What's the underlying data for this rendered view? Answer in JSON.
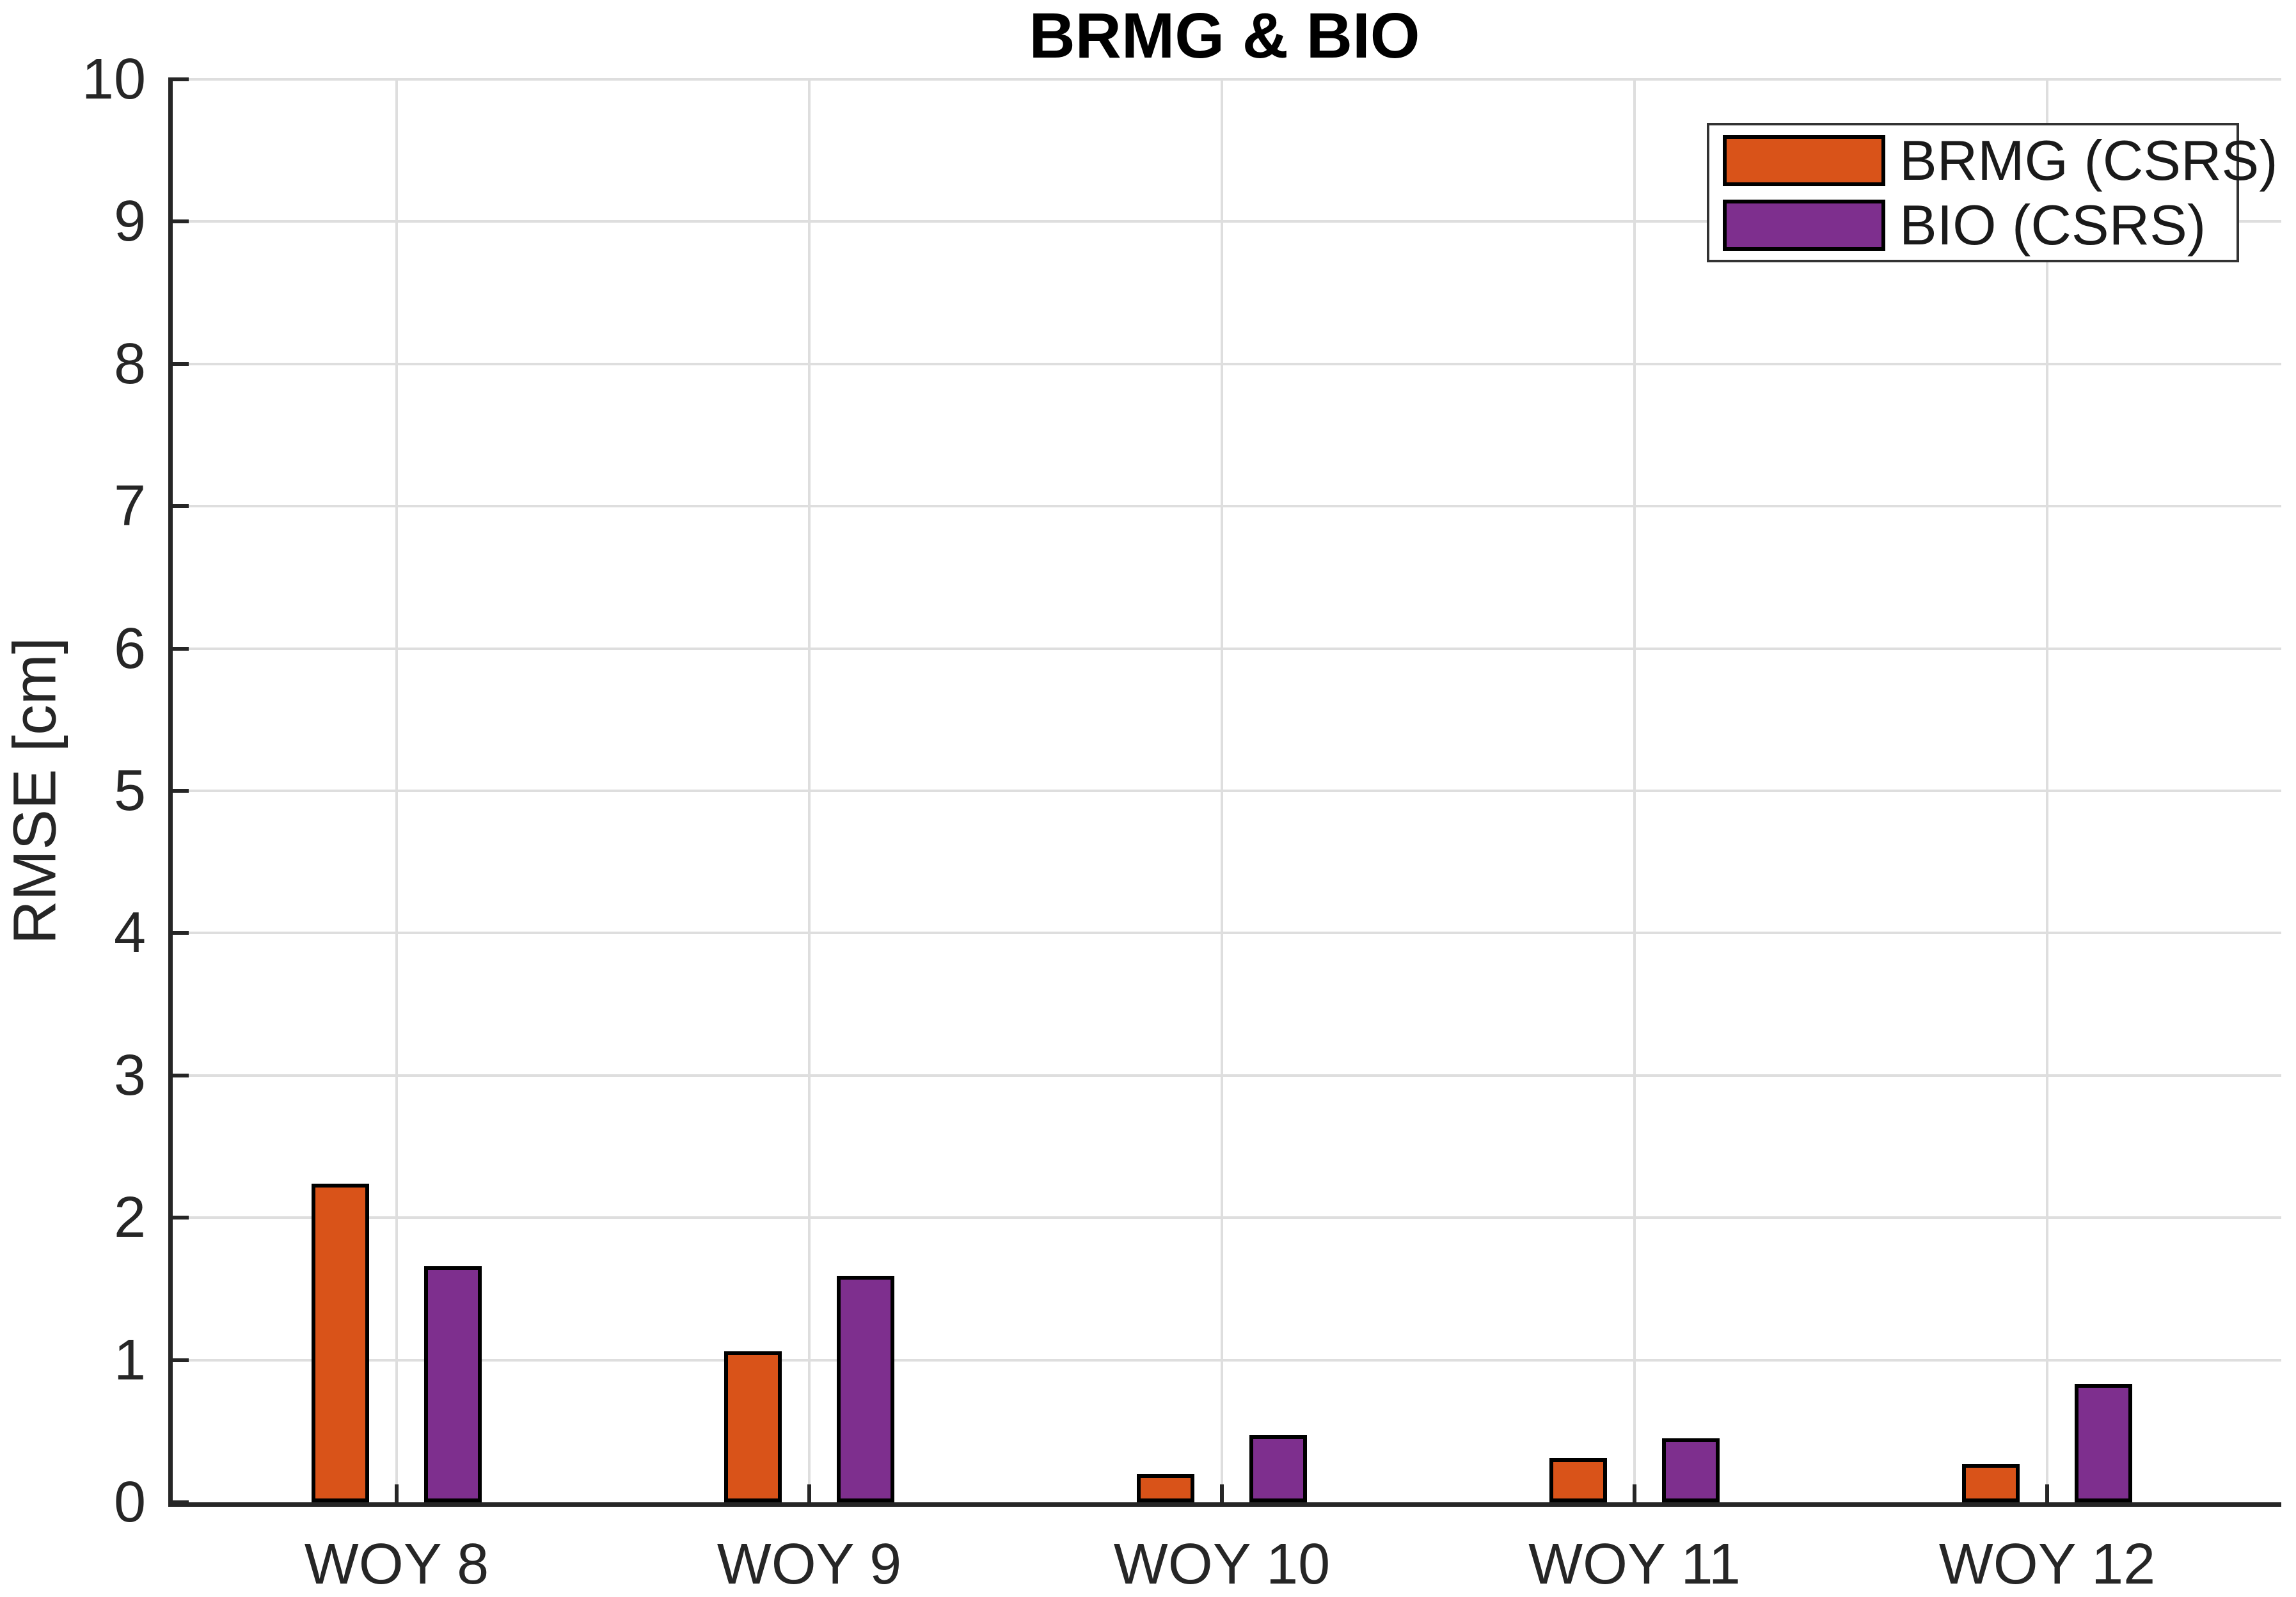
{
  "chart_data": {
    "type": "bar",
    "title": "BRMG & BIO",
    "ylabel": "RMSE [cm]",
    "xlabel": "",
    "ylim": [
      0,
      10
    ],
    "yticks": [
      0,
      1,
      2,
      3,
      4,
      5,
      6,
      7,
      8,
      9,
      10
    ],
    "categories": [
      "WOY 8",
      "WOY 9",
      "WOY 10",
      "WOY 11",
      "WOY 12"
    ],
    "series": [
      {
        "name": "BRMG (CSRS)",
        "key": "brmg",
        "color": "#D95319",
        "values": [
          2.24,
          1.06,
          0.2,
          0.31,
          0.27
        ]
      },
      {
        "name": "BIO (CSRS)",
        "key": "bio",
        "color": "#7E2F8E",
        "values": [
          1.66,
          1.59,
          0.47,
          0.45,
          0.83
        ]
      }
    ],
    "grid": true,
    "legend_position": "top-right"
  },
  "colors": {
    "background": "#FFFFFF",
    "axis": "#262626",
    "grid": "#DEDEDE",
    "bar_edge": "#000000",
    "legend_border": "#333333",
    "tick_text": "#262626",
    "title_text": "#000000"
  }
}
